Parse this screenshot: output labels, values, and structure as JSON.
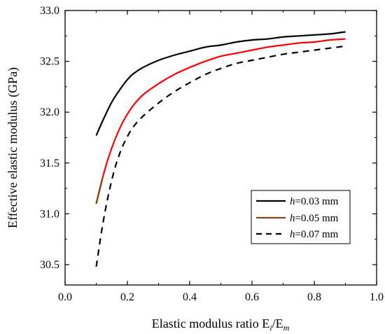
{
  "chart_data": {
    "type": "line",
    "title": "",
    "xlabel": "Elastic modulus ratio  E",
    "xlabel_sub1": "i",
    "xlabel_sep": "/E",
    "xlabel_sub2": "m",
    "ylabel": "Effective elastic modulus  (GPa)",
    "xlim": [
      0.0,
      1.0
    ],
    "ylim": [
      30.3,
      33.0
    ],
    "xticks": [
      "0.0",
      "0.2",
      "0.4",
      "0.6",
      "0.8",
      "1.0"
    ],
    "yticks": [
      "30.5",
      "31.0",
      "31.5",
      "32.0",
      "32.5",
      "33.0"
    ],
    "grid": false,
    "legend_position": "lower-right",
    "series": [
      {
        "name_italic": "h",
        "name_rest": "=0.03 mm",
        "color": "#000000",
        "style": "solid",
        "x": [
          0.1,
          0.12,
          0.15,
          0.18,
          0.2,
          0.22,
          0.25,
          0.3,
          0.35,
          0.4,
          0.45,
          0.5,
          0.55,
          0.6,
          0.65,
          0.7,
          0.75,
          0.8,
          0.85,
          0.9
        ],
        "y": [
          31.77,
          31.91,
          32.1,
          32.24,
          32.32,
          32.38,
          32.44,
          32.51,
          32.56,
          32.6,
          32.64,
          32.66,
          32.69,
          32.71,
          32.72,
          32.74,
          32.75,
          32.76,
          32.77,
          32.79
        ]
      },
      {
        "name_italic": "h",
        "name_rest": "=0.05 mm",
        "color": "#ff0000",
        "style": "solid",
        "start_color": "#8b4513",
        "x": [
          0.1,
          0.12,
          0.14,
          0.16,
          0.18,
          0.2,
          0.22,
          0.25,
          0.3,
          0.35,
          0.4,
          0.45,
          0.5,
          0.55,
          0.6,
          0.65,
          0.7,
          0.75,
          0.8,
          0.85,
          0.9
        ],
        "y": [
          31.1,
          31.35,
          31.56,
          31.73,
          31.87,
          31.98,
          32.07,
          32.17,
          32.28,
          32.37,
          32.44,
          32.5,
          32.55,
          32.58,
          32.61,
          32.64,
          32.66,
          32.68,
          32.69,
          32.71,
          32.72
        ]
      },
      {
        "name_italic": "h",
        "name_rest": "=0.07 mm",
        "color": "#000000",
        "style": "dashed",
        "x": [
          0.1,
          0.12,
          0.14,
          0.16,
          0.18,
          0.2,
          0.22,
          0.25,
          0.3,
          0.35,
          0.4,
          0.45,
          0.5,
          0.55,
          0.6,
          0.65,
          0.7,
          0.75,
          0.8,
          0.85,
          0.9
        ],
        "y": [
          30.48,
          30.88,
          31.2,
          31.45,
          31.63,
          31.76,
          31.86,
          31.96,
          32.09,
          32.2,
          32.29,
          32.37,
          32.43,
          32.48,
          32.51,
          32.54,
          32.57,
          32.59,
          32.61,
          32.63,
          32.65
        ]
      }
    ]
  }
}
